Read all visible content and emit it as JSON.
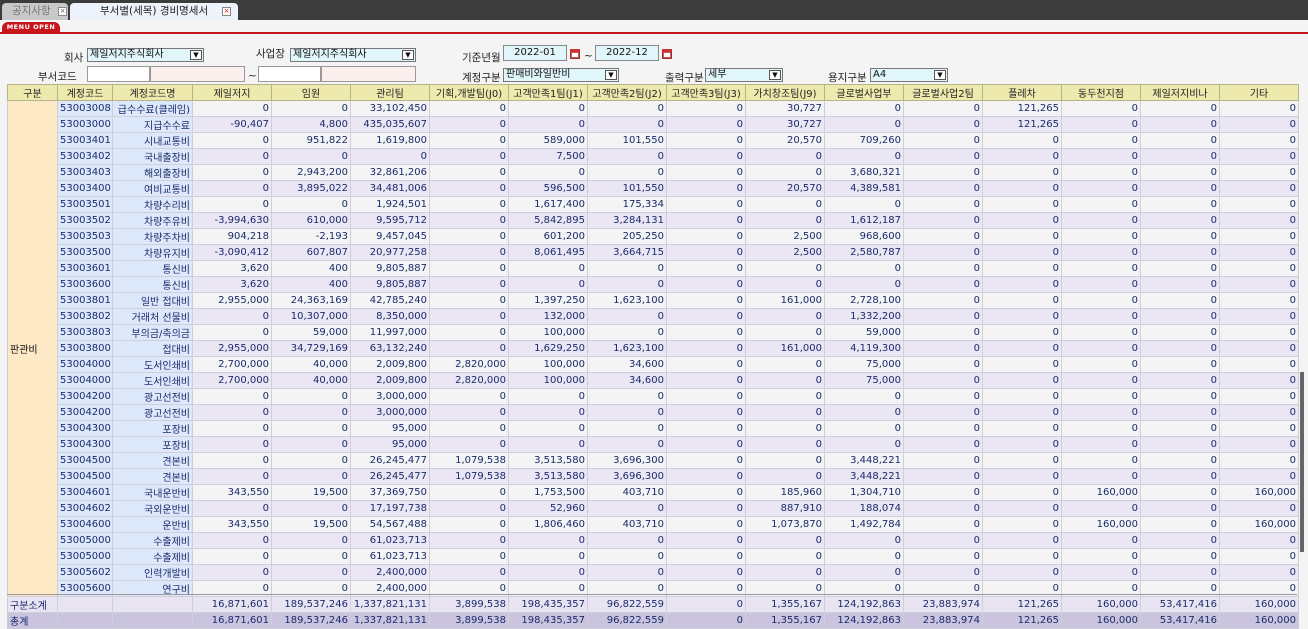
{
  "tabs": [
    {
      "label": "공지사항",
      "close": "×"
    },
    {
      "label": "부서별(세목) 경비명세서",
      "close": "×"
    }
  ],
  "menu_open": "MENU OPEN",
  "filters": {
    "company_label": "회사",
    "company_value": "제일저지주식회사",
    "site_label": "사업장",
    "site_value": "제일저지주식회사",
    "period_label": "기준년월",
    "period_from": "2022-01",
    "period_to": "2022-12",
    "tilde": "~",
    "dept_label": "부서코드",
    "account_type_label": "계정구분",
    "account_type_value": "판매비와일반비",
    "output_label": "출력구분",
    "output_value": "세부",
    "paper_label": "용지구분",
    "paper_value": "A4"
  },
  "table": {
    "headers": [
      "구분",
      "계정코드",
      "계정코드명",
      "제일저지",
      "임원",
      "관리팀",
      "기획,개발팀(J0)",
      "고객만족1팀(J1)",
      "고객만족2팀(J2)",
      "고객만족3팀(J3)",
      "가치창조팀(J9)",
      "글로벌사업부",
      "글로벌사업2팀",
      "플레차",
      "동두천지점",
      "제일저지비나",
      "기타"
    ],
    "group": "판관비",
    "rows": [
      [
        "53003008",
        "급수수료(클레임)",
        "0",
        "0",
        "33,102,450",
        "0",
        "0",
        "0",
        "0",
        "30,727",
        "0",
        "0",
        "121,265",
        "0",
        "0",
        "0"
      ],
      [
        "53003000",
        "지급수수료",
        "-90,407",
        "4,800",
        "435,035,607",
        "0",
        "0",
        "0",
        "0",
        "30,727",
        "0",
        "0",
        "121,265",
        "0",
        "0",
        "0"
      ],
      [
        "53003401",
        "시내교통비",
        "0",
        "951,822",
        "1,619,800",
        "0",
        "589,000",
        "101,550",
        "0",
        "20,570",
        "709,260",
        "0",
        "0",
        "0",
        "0",
        "0"
      ],
      [
        "53003402",
        "국내출장비",
        "0",
        "0",
        "0",
        "0",
        "7,500",
        "0",
        "0",
        "0",
        "0",
        "0",
        "0",
        "0",
        "0",
        "0"
      ],
      [
        "53003403",
        "해외출장비",
        "0",
        "2,943,200",
        "32,861,206",
        "0",
        "0",
        "0",
        "0",
        "0",
        "3,680,321",
        "0",
        "0",
        "0",
        "0",
        "0"
      ],
      [
        "53003400",
        "여비교통비",
        "0",
        "3,895,022",
        "34,481,006",
        "0",
        "596,500",
        "101,550",
        "0",
        "20,570",
        "4,389,581",
        "0",
        "0",
        "0",
        "0",
        "0"
      ],
      [
        "53003501",
        "차량수리비",
        "0",
        "0",
        "1,924,501",
        "0",
        "1,617,400",
        "175,334",
        "0",
        "0",
        "0",
        "0",
        "0",
        "0",
        "0",
        "0"
      ],
      [
        "53003502",
        "차량주유비",
        "-3,994,630",
        "610,000",
        "9,595,712",
        "0",
        "5,842,895",
        "3,284,131",
        "0",
        "0",
        "1,612,187",
        "0",
        "0",
        "0",
        "0",
        "0"
      ],
      [
        "53003503",
        "차량주차비",
        "904,218",
        "-2,193",
        "9,457,045",
        "0",
        "601,200",
        "205,250",
        "0",
        "2,500",
        "968,600",
        "0",
        "0",
        "0",
        "0",
        "0"
      ],
      [
        "53003500",
        "차량유지비",
        "-3,090,412",
        "607,807",
        "20,977,258",
        "0",
        "8,061,495",
        "3,664,715",
        "0",
        "2,500",
        "2,580,787",
        "0",
        "0",
        "0",
        "0",
        "0"
      ],
      [
        "53003601",
        "통신비",
        "3,620",
        "400",
        "9,805,887",
        "0",
        "0",
        "0",
        "0",
        "0",
        "0",
        "0",
        "0",
        "0",
        "0",
        "0"
      ],
      [
        "53003600",
        "통신비",
        "3,620",
        "400",
        "9,805,887",
        "0",
        "0",
        "0",
        "0",
        "0",
        "0",
        "0",
        "0",
        "0",
        "0",
        "0"
      ],
      [
        "53003801",
        "일반 접대비",
        "2,955,000",
        "24,363,169",
        "42,785,240",
        "0",
        "1,397,250",
        "1,623,100",
        "0",
        "161,000",
        "2,728,100",
        "0",
        "0",
        "0",
        "0",
        "0"
      ],
      [
        "53003802",
        "거래처 선물비",
        "0",
        "10,307,000",
        "8,350,000",
        "0",
        "132,000",
        "0",
        "0",
        "0",
        "1,332,200",
        "0",
        "0",
        "0",
        "0",
        "0"
      ],
      [
        "53003803",
        "부의금/축의금",
        "0",
        "59,000",
        "11,997,000",
        "0",
        "100,000",
        "0",
        "0",
        "0",
        "59,000",
        "0",
        "0",
        "0",
        "0",
        "0"
      ],
      [
        "53003800",
        "접대비",
        "2,955,000",
        "34,729,169",
        "63,132,240",
        "0",
        "1,629,250",
        "1,623,100",
        "0",
        "161,000",
        "4,119,300",
        "0",
        "0",
        "0",
        "0",
        "0"
      ],
      [
        "53004000",
        "도서인쇄비",
        "2,700,000",
        "40,000",
        "2,009,800",
        "2,820,000",
        "100,000",
        "34,600",
        "0",
        "0",
        "75,000",
        "0",
        "0",
        "0",
        "0",
        "0"
      ],
      [
        "53004000",
        "도서인쇄비",
        "2,700,000",
        "40,000",
        "2,009,800",
        "2,820,000",
        "100,000",
        "34,600",
        "0",
        "0",
        "75,000",
        "0",
        "0",
        "0",
        "0",
        "0"
      ],
      [
        "53004200",
        "광고선전비",
        "0",
        "0",
        "3,000,000",
        "0",
        "0",
        "0",
        "0",
        "0",
        "0",
        "0",
        "0",
        "0",
        "0",
        "0"
      ],
      [
        "53004200",
        "광고선전비",
        "0",
        "0",
        "3,000,000",
        "0",
        "0",
        "0",
        "0",
        "0",
        "0",
        "0",
        "0",
        "0",
        "0",
        "0"
      ],
      [
        "53004300",
        "포장비",
        "0",
        "0",
        "95,000",
        "0",
        "0",
        "0",
        "0",
        "0",
        "0",
        "0",
        "0",
        "0",
        "0",
        "0"
      ],
      [
        "53004300",
        "포장비",
        "0",
        "0",
        "95,000",
        "0",
        "0",
        "0",
        "0",
        "0",
        "0",
        "0",
        "0",
        "0",
        "0",
        "0"
      ],
      [
        "53004500",
        "견본비",
        "0",
        "0",
        "26,245,477",
        "1,079,538",
        "3,513,580",
        "3,696,300",
        "0",
        "0",
        "3,448,221",
        "0",
        "0",
        "0",
        "0",
        "0"
      ],
      [
        "53004500",
        "견본비",
        "0",
        "0",
        "26,245,477",
        "1,079,538",
        "3,513,580",
        "3,696,300",
        "0",
        "0",
        "3,448,221",
        "0",
        "0",
        "0",
        "0",
        "0"
      ],
      [
        "53004601",
        "국내운반비",
        "343,550",
        "19,500",
        "37,369,750",
        "0",
        "1,753,500",
        "403,710",
        "0",
        "185,960",
        "1,304,710",
        "0",
        "0",
        "160,000",
        "0",
        "160,000"
      ],
      [
        "53004602",
        "국외운반비",
        "0",
        "0",
        "17,197,738",
        "0",
        "52,960",
        "0",
        "0",
        "887,910",
        "188,074",
        "0",
        "0",
        "0",
        "0",
        "0"
      ],
      [
        "53004600",
        "운반비",
        "343,550",
        "19,500",
        "54,567,488",
        "0",
        "1,806,460",
        "403,710",
        "0",
        "1,073,870",
        "1,492,784",
        "0",
        "0",
        "160,000",
        "0",
        "160,000"
      ],
      [
        "53005000",
        "수출제비",
        "0",
        "0",
        "61,023,713",
        "0",
        "0",
        "0",
        "0",
        "0",
        "0",
        "0",
        "0",
        "0",
        "0",
        "0"
      ],
      [
        "53005000",
        "수출제비",
        "0",
        "0",
        "61,023,713",
        "0",
        "0",
        "0",
        "0",
        "0",
        "0",
        "0",
        "0",
        "0",
        "0",
        "0"
      ],
      [
        "53005602",
        "인력개발비",
        "0",
        "0",
        "2,400,000",
        "0",
        "0",
        "0",
        "0",
        "0",
        "0",
        "0",
        "0",
        "0",
        "0",
        "0"
      ],
      [
        "53005600",
        "연구비",
        "0",
        "0",
        "2,400,000",
        "0",
        "0",
        "0",
        "0",
        "0",
        "0",
        "0",
        "0",
        "0",
        "0",
        "0"
      ]
    ],
    "subtotal": {
      "label": "구분소계",
      "values": [
        "16,871,601",
        "189,537,246",
        "1,337,821,131",
        "3,899,538",
        "198,435,357",
        "96,822,559",
        "0",
        "1,355,167",
        "124,192,863",
        "23,883,974",
        "121,265",
        "160,000",
        "53,417,416",
        "160,000"
      ]
    },
    "total": {
      "label": "총계",
      "values": [
        "16,871,601",
        "189,537,246",
        "1,337,821,131",
        "3,899,538",
        "198,435,357",
        "96,822,559",
        "0",
        "1,355,167",
        "124,192,863",
        "23,883,974",
        "121,265",
        "160,000",
        "53,417,416",
        "160,000"
      ]
    }
  }
}
